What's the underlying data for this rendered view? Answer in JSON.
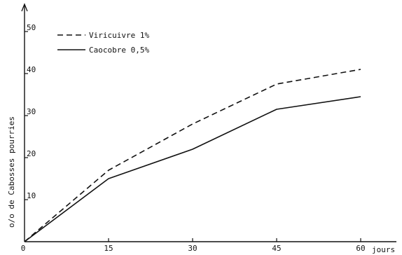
{
  "chart_data": {
    "type": "line",
    "x": [
      0,
      15,
      30,
      45,
      60
    ],
    "series": [
      {
        "name": "Viricuivre 1%",
        "style": "dashed",
        "values": [
          0,
          17,
          28,
          37.5,
          41
        ]
      },
      {
        "name": "Caocobre 0,5%",
        "style": "solid",
        "values": [
          0,
          15,
          22,
          31.5,
          34.5
        ]
      }
    ],
    "xticks": [
      0,
      15,
      30,
      45,
      60
    ],
    "yticks": [
      10,
      20,
      30,
      40,
      50
    ],
    "xlim": [
      0,
      60
    ],
    "ylim": [
      0,
      55
    ],
    "xlabel": "jours",
    "ylabel": "o/o de Cabosses pourries",
    "title": "",
    "legend_position": "top-left",
    "grid": false,
    "color": "#111111"
  }
}
